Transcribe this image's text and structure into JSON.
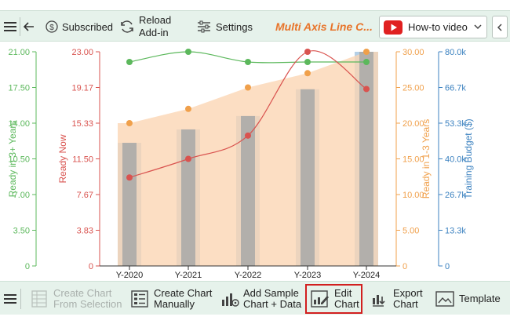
{
  "toolbar": {
    "subscribed_label": "Subscribed",
    "reload_line1": "Reload",
    "reload_line2": "Add-in",
    "settings_label": "Settings",
    "title": "Multi Axis Line C...",
    "video_label": "How-to video"
  },
  "bottom": {
    "create_from_sel_1": "Create Chart",
    "create_from_sel_2": "From Selection",
    "create_manual_1": "Create Chart",
    "create_manual_2": "Manually",
    "add_sample_1": "Add Sample",
    "add_sample_2": "Chart + Data",
    "edit_1": "Edit",
    "edit_2": "Chart",
    "export_1": "Export",
    "export_2": "Chart",
    "template": "Template"
  },
  "colors": {
    "green": "#5cb85c",
    "red": "#d9534f",
    "orange": "#f0a04b",
    "blue": "#3c82c0",
    "bar": "#b4cfe6",
    "grey_bar": "#a8a8a8",
    "area": "#fbd5b2"
  },
  "chart_data": {
    "type": "line",
    "categories": [
      "Y-2020",
      "Y-2021",
      "Y-2022",
      "Y-2023",
      "Y-2024"
    ],
    "axes": [
      {
        "label": "Ready in 3+ Years",
        "color": "#5cb85c",
        "ticks": [
          "21.00",
          "17.50",
          "14.00",
          "10.50",
          "7.00",
          "3.50",
          "0"
        ],
        "range": [
          0,
          21
        ]
      },
      {
        "label": "Ready Now",
        "color": "#d9534f",
        "ticks": [
          "23.00",
          "19.17",
          "15.33",
          "11.50",
          "7.67",
          "3.83",
          "0"
        ],
        "range": [
          0,
          23
        ]
      },
      {
        "label": "Ready in 1-3 Years",
        "color": "#f0a04b",
        "ticks": [
          "30.00",
          "25.00",
          "20.00",
          "15.00",
          "10.00",
          "5.00",
          "0"
        ],
        "range": [
          0,
          30
        ]
      },
      {
        "label": "Training Budget ($)",
        "color": "#3c82c0",
        "ticks": [
          "80.0k",
          "66.7k",
          "53.3k",
          "40.0k",
          "26.7k",
          "13.3k",
          "0"
        ],
        "range": [
          0,
          80000
        ]
      }
    ],
    "series": [
      {
        "name": "Ready in 3+ Years",
        "axis": 0,
        "type": "line",
        "color": "#5cb85c",
        "values": [
          20,
          21,
          20,
          20,
          20
        ]
      },
      {
        "name": "Ready Now",
        "axis": 1,
        "type": "line",
        "color": "#d9534f",
        "values": [
          9.5,
          11.5,
          14,
          23,
          19
        ]
      },
      {
        "name": "Ready in 1-3 Years",
        "axis": 2,
        "type": "area",
        "color": "#f0a04b",
        "values": [
          20,
          22,
          25,
          27,
          30
        ]
      },
      {
        "name": "Training Budget ($)",
        "axis": 3,
        "type": "bar",
        "color": "#b4cfe6",
        "values": [
          46000,
          51000,
          56000,
          66000,
          80000
        ]
      }
    ]
  }
}
